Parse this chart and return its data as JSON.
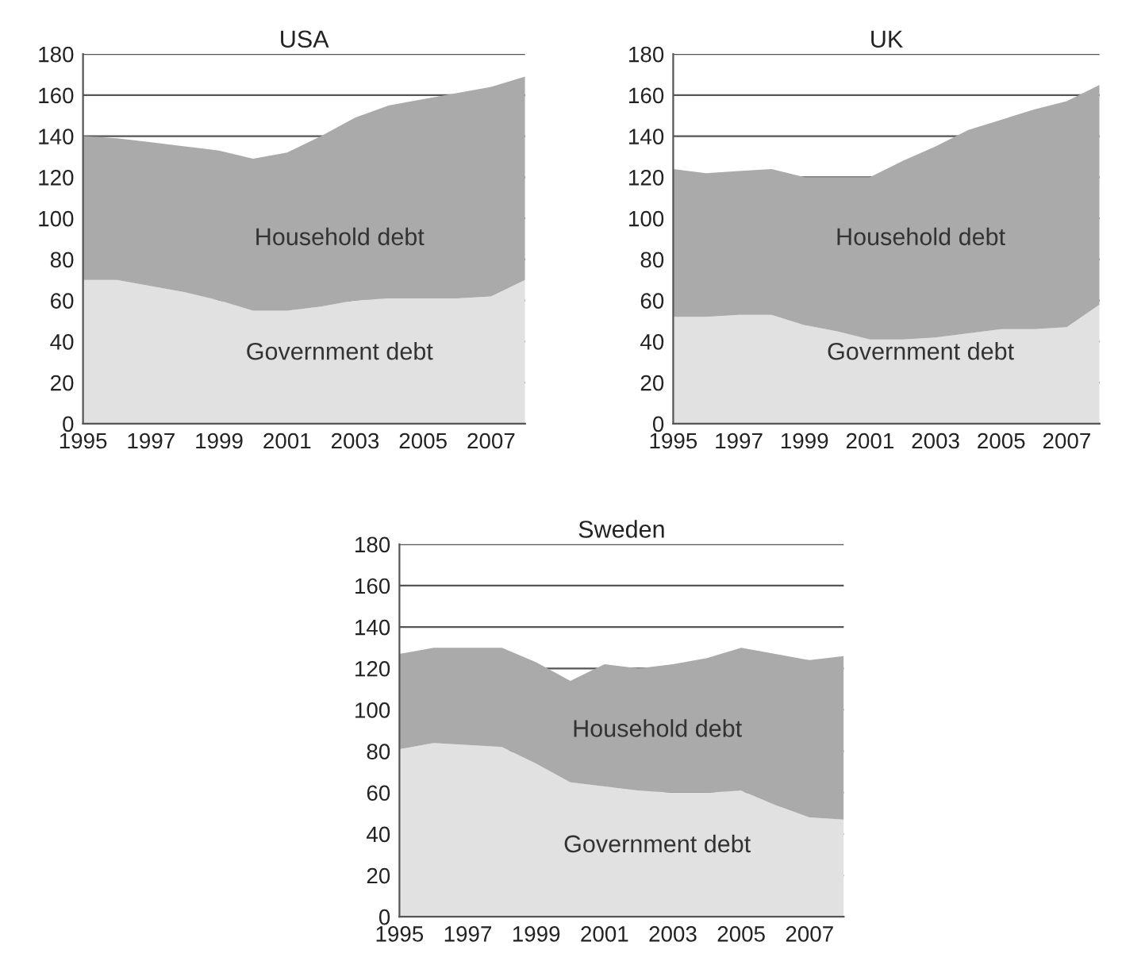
{
  "chart_data": [
    {
      "type": "area",
      "title": "USA",
      "stacked": true,
      "x": [
        1995,
        1996,
        1997,
        1998,
        1999,
        2000,
        2001,
        2002,
        2003,
        2004,
        2005,
        2006,
        2007,
        2008
      ],
      "xlim": [
        1995,
        2008
      ],
      "xticks": [
        1995,
        1997,
        1999,
        2001,
        2003,
        2005,
        2007
      ],
      "ylim": [
        0,
        180
      ],
      "yticks": [
        0,
        20,
        40,
        60,
        80,
        100,
        120,
        140,
        160,
        180
      ],
      "grid": "y",
      "legend": false,
      "series": [
        {
          "name": "Government debt",
          "color": "#e1e1e1",
          "values": [
            70,
            70,
            67,
            64,
            60,
            55,
            55,
            57,
            60,
            61,
            61,
            61,
            62,
            70
          ]
        },
        {
          "name": "Household debt",
          "color": "#aaaaaa",
          "values": [
            70,
            69,
            70,
            71,
            73,
            74,
            77,
            83,
            89,
            94,
            97,
            100,
            102,
            99
          ]
        }
      ]
    },
    {
      "type": "area",
      "title": "UK",
      "stacked": true,
      "x": [
        1995,
        1996,
        1997,
        1998,
        1999,
        2000,
        2001,
        2002,
        2003,
        2004,
        2005,
        2006,
        2007,
        2008
      ],
      "xlim": [
        1995,
        2008
      ],
      "xticks": [
        1995,
        1997,
        1999,
        2001,
        2003,
        2005,
        2007
      ],
      "ylim": [
        0,
        180
      ],
      "yticks": [
        0,
        20,
        40,
        60,
        80,
        100,
        120,
        140,
        160,
        180
      ],
      "grid": "y",
      "legend": false,
      "series": [
        {
          "name": "Government debt",
          "color": "#e1e1e1",
          "values": [
            52,
            52,
            53,
            53,
            48,
            45,
            41,
            41,
            42,
            44,
            46,
            46,
            47,
            58
          ]
        },
        {
          "name": "Household debt",
          "color": "#aaaaaa",
          "values": [
            72,
            70,
            70,
            71,
            72,
            75,
            79,
            87,
            93,
            99,
            102,
            107,
            110,
            107
          ]
        }
      ]
    },
    {
      "type": "area",
      "title": "Sweden",
      "stacked": true,
      "x": [
        1995,
        1996,
        1997,
        1998,
        1999,
        2000,
        2001,
        2002,
        2003,
        2004,
        2005,
        2006,
        2007,
        2008
      ],
      "xlim": [
        1995,
        2008
      ],
      "xticks": [
        1995,
        1997,
        1999,
        2001,
        2003,
        2005,
        2007
      ],
      "ylim": [
        0,
        180
      ],
      "yticks": [
        0,
        20,
        40,
        60,
        80,
        100,
        120,
        140,
        160,
        180
      ],
      "grid": "y",
      "legend": false,
      "series": [
        {
          "name": "Government debt",
          "color": "#e1e1e1",
          "values": [
            81,
            84,
            83,
            82,
            74,
            65,
            63,
            61,
            60,
            60,
            61,
            54,
            48,
            47
          ]
        },
        {
          "name": "Household debt",
          "color": "#aaaaaa",
          "values": [
            46,
            46,
            47,
            48,
            49,
            49,
            59,
            59,
            62,
            65,
            69,
            73,
            76,
            79
          ]
        }
      ]
    }
  ]
}
